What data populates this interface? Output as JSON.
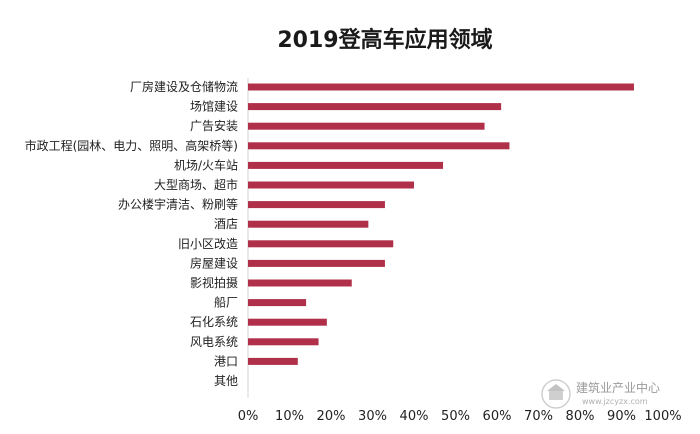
{
  "chart_data": {
    "type": "bar",
    "orientation": "horizontal",
    "title": "2019登高车应用领域",
    "categories": [
      "厂房建设及仓储物流",
      "场馆建设",
      "广告安装",
      "市政工程(园林、电力、照明、高架桥等)",
      "机场/火车站",
      "大型商场、超市",
      "办公楼宇清洁、粉刷等",
      "酒店",
      "旧小区改造",
      "房屋建设",
      "影视拍摄",
      "船厂",
      "石化系统",
      "风电系统",
      "港口",
      "其他"
    ],
    "values": [
      93,
      61,
      57,
      63,
      47,
      40,
      33,
      29,
      35,
      33,
      25,
      14,
      19,
      17,
      12,
      0
    ],
    "xlim": [
      0,
      100
    ],
    "xticks": [
      "0%",
      "10%",
      "20%",
      "30%",
      "40%",
      "50%",
      "60%",
      "70%",
      "80%",
      "90%",
      "100%"
    ],
    "bar_color": "#b0304a",
    "grid": false,
    "legend": "none"
  },
  "watermark": {
    "text": "建筑业产业中心",
    "url": "www.jzcyzx.com"
  }
}
